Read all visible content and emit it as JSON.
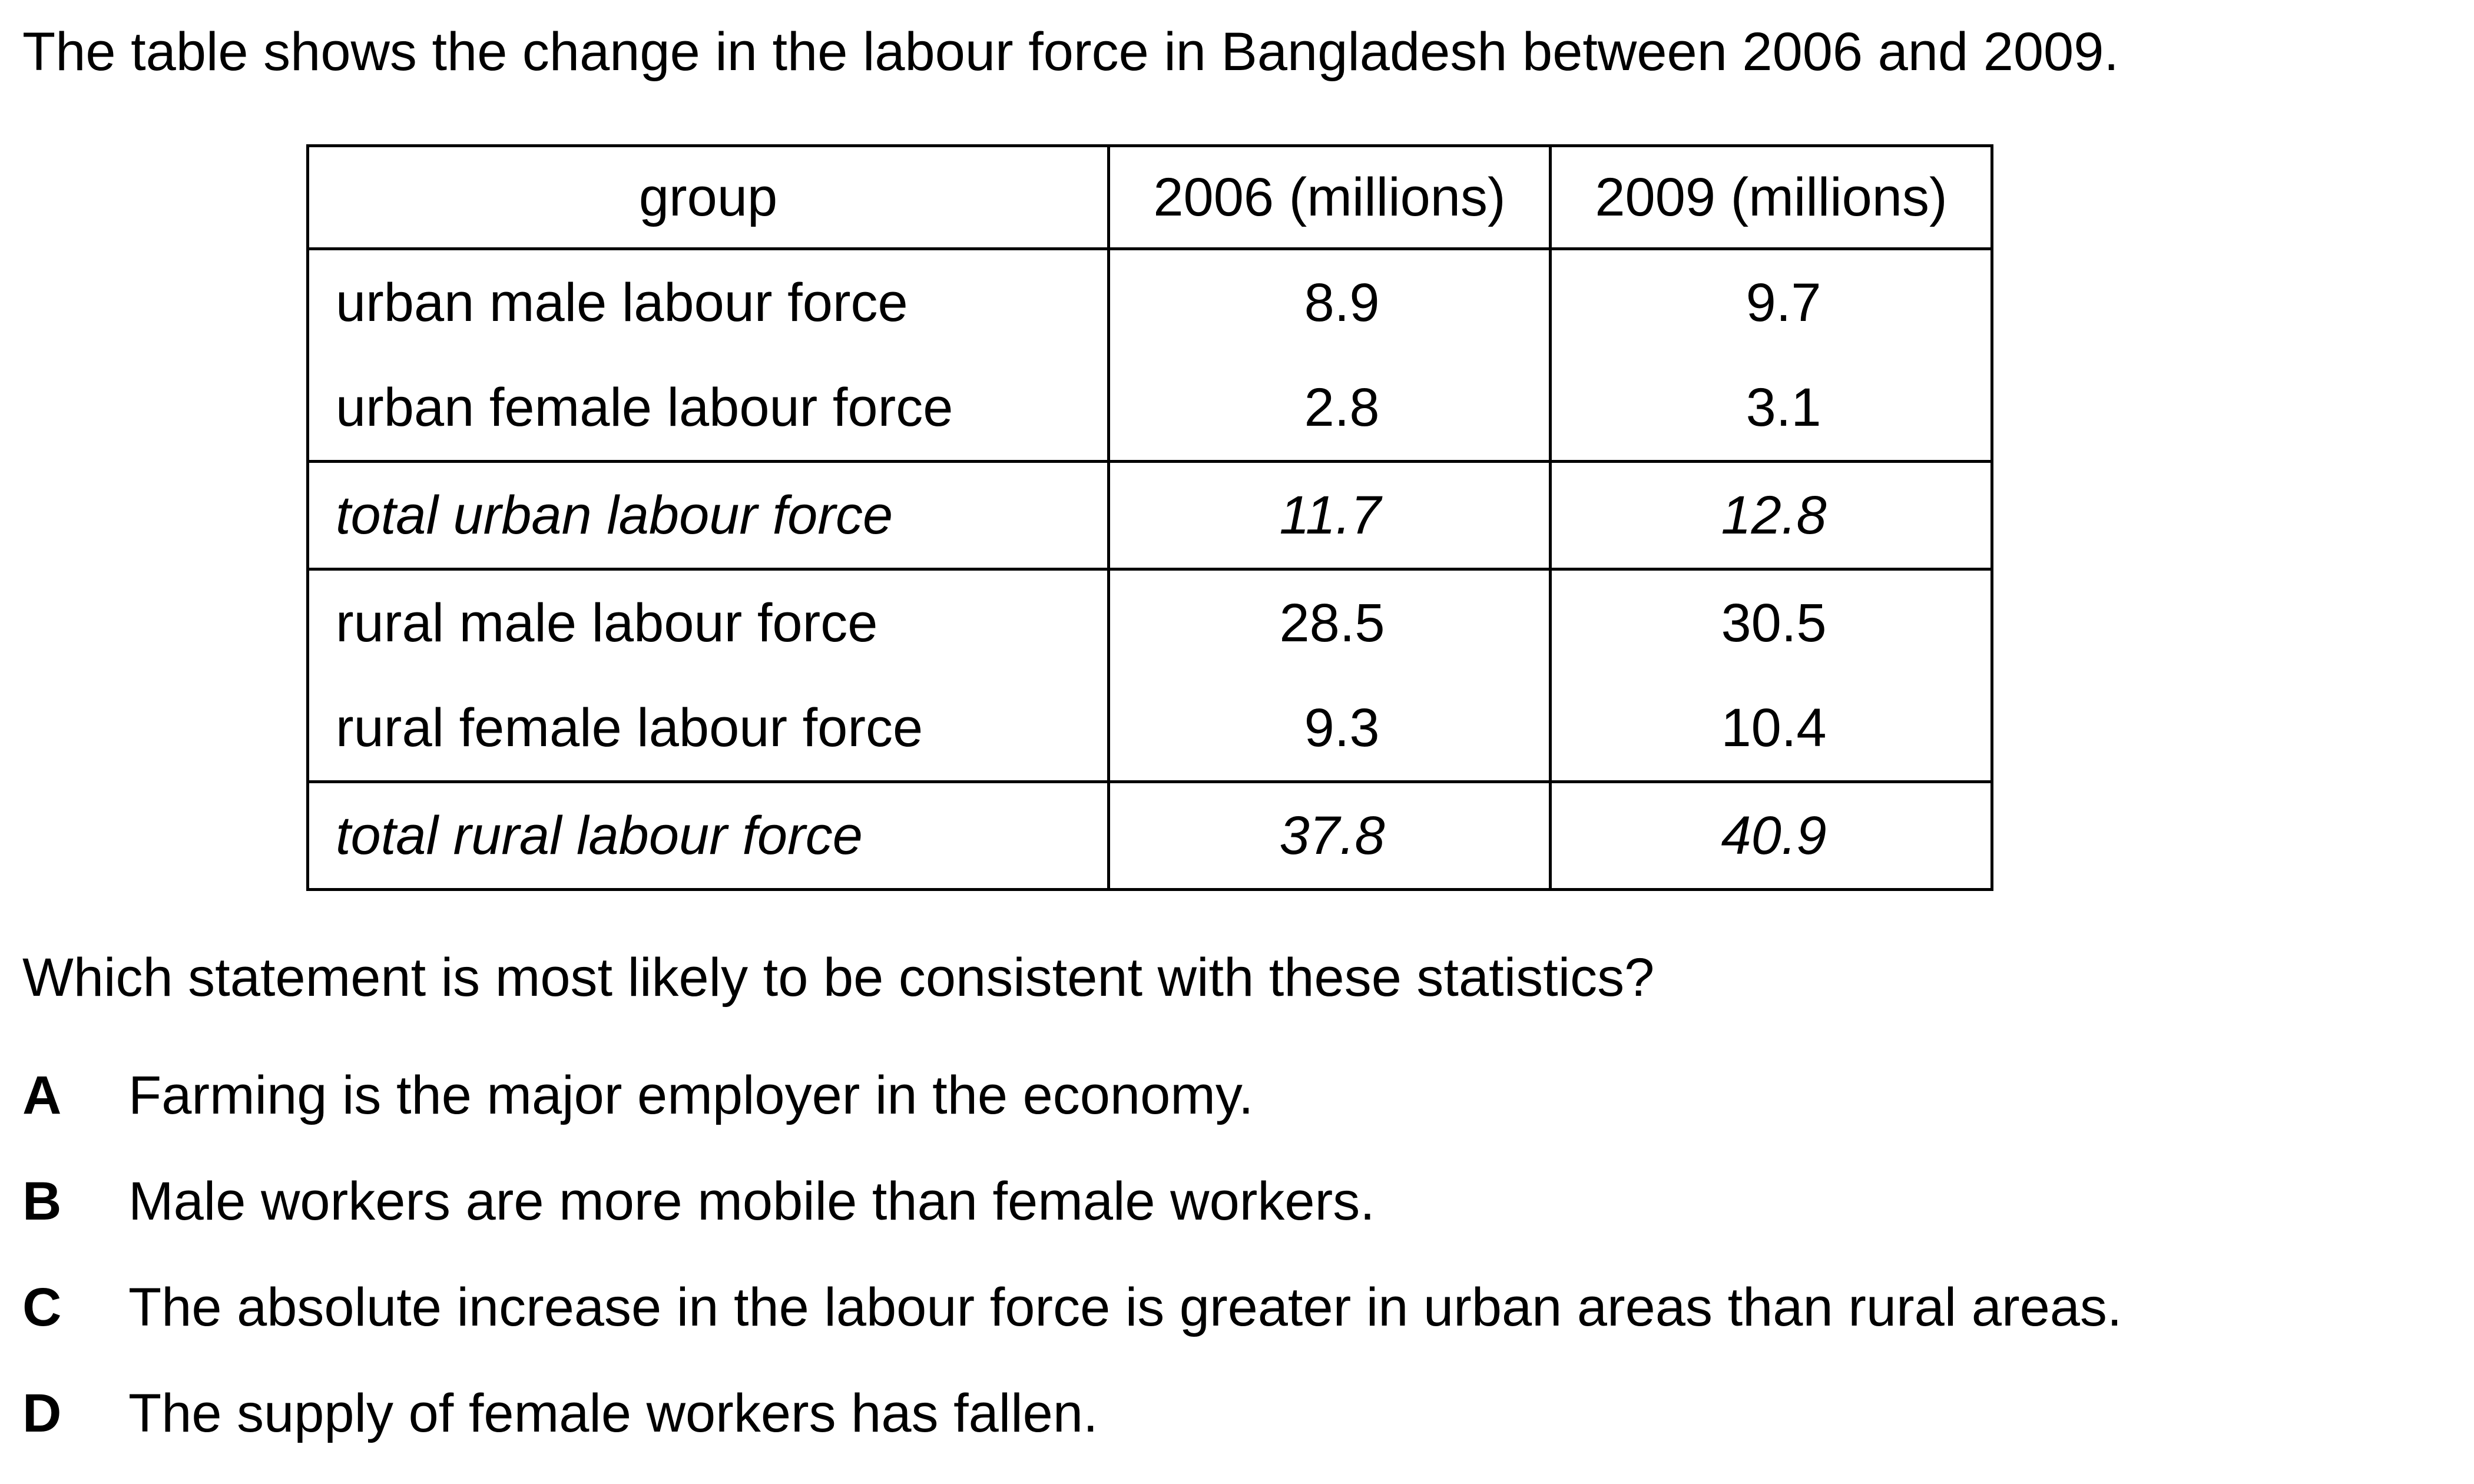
{
  "intro": "The table shows the change in the labour force in Bangladesh between 2006 and 2009.",
  "table": {
    "headers": [
      "group",
      "2006 (millions)",
      "2009 (millions)"
    ],
    "rows": [
      {
        "group": "urban male labour force",
        "v2006": "8.9",
        "v2009": "9.7"
      },
      {
        "group": "urban female labour force",
        "v2006": "2.8",
        "v2009": "3.1"
      },
      {
        "group": "total urban labour force",
        "v2006": "11.7",
        "v2009": "12.8"
      },
      {
        "group": "rural male labour force",
        "v2006": "28.5",
        "v2009": "30.5"
      },
      {
        "group": "rural female labour force",
        "v2006": "9.3",
        "v2009": "10.4"
      },
      {
        "group": "total rural labour force",
        "v2006": "37.8",
        "v2009": "40.9"
      }
    ]
  },
  "question": "Which statement is most likely to be consistent with these statistics?",
  "options": [
    {
      "letter": "A",
      "text": "Farming is the major employer in the economy."
    },
    {
      "letter": "B",
      "text": "Male workers are more mobile than female workers."
    },
    {
      "letter": "C",
      "text": "The absolute increase in the labour force is greater in urban areas than rural areas."
    },
    {
      "letter": "D",
      "text": "The supply of female workers has fallen."
    }
  ]
}
